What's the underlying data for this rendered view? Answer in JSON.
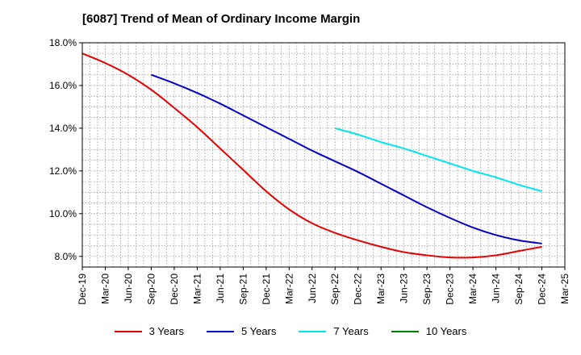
{
  "title": "[6087]  Trend of Mean of Ordinary Income Margin",
  "chart_data": {
    "type": "line",
    "title": "[6087]  Trend of Mean of Ordinary Income Margin",
    "xlabel": "",
    "ylabel": "",
    "ylim": [
      7.5,
      18.0
    ],
    "x_tick_labels": [
      "Dec-19",
      "Mar-20",
      "Jun-20",
      "Sep-20",
      "Dec-20",
      "Mar-21",
      "Jun-21",
      "Sep-21",
      "Dec-21",
      "Mar-22",
      "Jun-22",
      "Sep-22",
      "Dec-22",
      "Mar-23",
      "Jun-23",
      "Sep-23",
      "Dec-23",
      "Mar-24",
      "Jun-24",
      "Sep-24",
      "Dec-24",
      "Mar-25"
    ],
    "y_ticks": [
      8.0,
      10.0,
      12.0,
      14.0,
      16.0,
      18.0
    ],
    "y_tick_labels": [
      "8.0%",
      "10.0%",
      "12.0%",
      "14.0%",
      "16.0%",
      "18.0%"
    ],
    "grid": true,
    "legend_position": "bottom",
    "series": [
      {
        "name": "3 Years",
        "color": "#e60000",
        "x": [
          "Dec-19",
          "Mar-20",
          "Jun-20",
          "Sep-20",
          "Dec-20",
          "Mar-21",
          "Jun-21",
          "Sep-21",
          "Dec-21",
          "Mar-22",
          "Jun-22",
          "Sep-22",
          "Dec-22",
          "Mar-23",
          "Jun-23",
          "Sep-23",
          "Dec-23",
          "Mar-24",
          "Jun-24",
          "Sep-24",
          "Dec-24"
        ],
        "values": [
          17.5,
          17.05,
          16.5,
          15.8,
          14.95,
          14.05,
          13.05,
          12.05,
          11.05,
          10.2,
          9.55,
          9.1,
          8.75,
          8.45,
          8.2,
          8.05,
          7.95,
          7.95,
          8.05,
          8.25,
          8.45
        ]
      },
      {
        "name": "5 Years",
        "color": "#0000c8",
        "x": [
          "Sep-20",
          "Dec-20",
          "Mar-21",
          "Jun-21",
          "Sep-21",
          "Dec-21",
          "Mar-22",
          "Jun-22",
          "Sep-22",
          "Dec-22",
          "Mar-23",
          "Jun-23",
          "Sep-23",
          "Dec-23",
          "Mar-24",
          "Jun-24",
          "Sep-24",
          "Dec-24"
        ],
        "values": [
          16.5,
          16.1,
          15.65,
          15.15,
          14.6,
          14.05,
          13.5,
          12.95,
          12.45,
          11.95,
          11.4,
          10.85,
          10.3,
          9.8,
          9.35,
          9.0,
          8.75,
          8.6
        ]
      },
      {
        "name": "7 Years",
        "color": "#00e5ee",
        "x": [
          "Sep-22",
          "Dec-22",
          "Mar-23",
          "Jun-23",
          "Sep-23",
          "Dec-23",
          "Mar-24",
          "Jun-24",
          "Sep-24",
          "Dec-24"
        ],
        "values": [
          14.0,
          13.7,
          13.35,
          13.05,
          12.7,
          12.35,
          12.0,
          11.7,
          11.35,
          11.05
        ]
      },
      {
        "name": "10 Years",
        "color": "#008000",
        "x": [],
        "values": []
      }
    ]
  }
}
